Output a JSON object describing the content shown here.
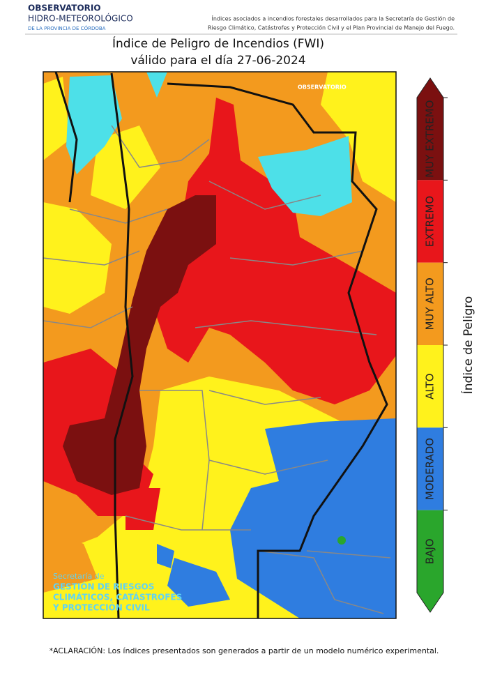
{
  "header": {
    "org_line1": "OBSERVATORIO",
    "org_line2": "HIDRO-METEOROLÓGICO",
    "org_line3": "DE LA PROVINCIA DE CÓRDOBA",
    "description_line1": "Índices asociados a incendios forestales desarrollados para la Secretaría de Gestión de",
    "description_line2": "Riesgo Climático, Catástrofes y Protección Civil y el Plan Provincial de Manejo del Fuego."
  },
  "title": {
    "line1": "Índice de Peligro de Incendios (FWI)",
    "line2": "válido para el día 27-06-2024"
  },
  "map": {
    "watermark_top": "OBSERVATORIO",
    "watermark_bottom": [
      "Secretaría de",
      "GESTIÓN DE RIESGOS",
      "CLIMÁTICOS, CATÁSTROFES",
      "Y PROTECCIÓN CIVIL"
    ]
  },
  "legend": {
    "title": "Índice de Peligro",
    "levels": [
      {
        "label": "MUY EXTREMO",
        "color": "#7b1010"
      },
      {
        "label": "EXTREMO",
        "color": "#e8161b"
      },
      {
        "label": "MUY ALTO",
        "color": "#f39a1e"
      },
      {
        "label": "ALTO",
        "color": "#fff21c"
      },
      {
        "label": "MODERADO",
        "color": "#2f7de0"
      },
      {
        "label": "BAJO",
        "color": "#2aa62c"
      }
    ]
  },
  "footnote": "*ACLARACIÓN: Los índices presentados son generados a partir de un modelo numérico experimental."
}
